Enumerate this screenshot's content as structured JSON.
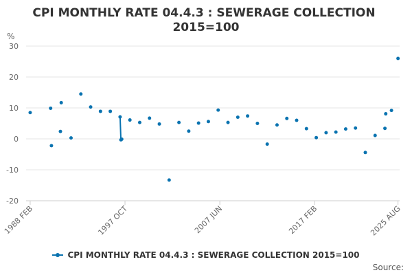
{
  "chart_data": {
    "type": "scatter",
    "title": "CPI MONTHLY RATE 04.4.3 : SEWERAGE COLLECTION",
    "subtitle": "2015=100",
    "ylabel": "%",
    "ylim": [
      -20,
      30
    ],
    "y_ticks": [
      -20,
      -10,
      0,
      10,
      20,
      30
    ],
    "x_tick_labels": [
      "1988 FEB",
      "1997 OCT",
      "2007 JUN",
      "2017 FEB",
      "2025 AUG"
    ],
    "grid": true,
    "legend_position": "bottom",
    "series": [
      {
        "name": "CPI MONTHLY RATE 04.4.3 : SEWERAGE COLLECTION 2015=100",
        "color": "#0a73b0",
        "points": [
          {
            "x": "1988 FEB",
            "y": 8.5
          },
          {
            "x": "1990 MAR",
            "y": 9.9
          },
          {
            "x": "1990 APR",
            "y": -2.2
          },
          {
            "x": "1991 MAR",
            "y": 2.4
          },
          {
            "x": "1991 APR",
            "y": 11.7
          },
          {
            "x": "1992 APR",
            "y": 0.3
          },
          {
            "x": "1993 APR",
            "y": 14.5
          },
          {
            "x": "1994 APR",
            "y": 10.3
          },
          {
            "x": "1995 APR",
            "y": 8.9
          },
          {
            "x": "1996 APR",
            "y": 8.9
          },
          {
            "x": "1997 APR",
            "y": 7.1
          },
          {
            "x": "1997 MAY",
            "y": -0.3
          },
          {
            "x": "1997 JUN",
            "y": -0.1
          },
          {
            "x": "1998 APR",
            "y": 6.1
          },
          {
            "x": "1999 APR",
            "y": 5.3
          },
          {
            "x": "2000 APR",
            "y": 6.7
          },
          {
            "x": "2001 APR",
            "y": 4.8
          },
          {
            "x": "2002 APR",
            "y": -13.3
          },
          {
            "x": "2003 APR",
            "y": 5.3
          },
          {
            "x": "2004 APR",
            "y": 2.5
          },
          {
            "x": "2005 APR",
            "y": 5.1
          },
          {
            "x": "2006 APR",
            "y": 5.6
          },
          {
            "x": "2007 APR",
            "y": 9.3
          },
          {
            "x": "2008 APR",
            "y": 5.3
          },
          {
            "x": "2009 APR",
            "y": 7.0
          },
          {
            "x": "2010 APR",
            "y": 7.4
          },
          {
            "x": "2011 APR",
            "y": 5.0
          },
          {
            "x": "2012 APR",
            "y": -1.7
          },
          {
            "x": "2013 APR",
            "y": 4.5
          },
          {
            "x": "2014 APR",
            "y": 6.6
          },
          {
            "x": "2015 APR",
            "y": 6.0
          },
          {
            "x": "2016 APR",
            "y": 3.3
          },
          {
            "x": "2017 APR",
            "y": 0.4
          },
          {
            "x": "2018 APR",
            "y": 2.0
          },
          {
            "x": "2019 APR",
            "y": 2.2
          },
          {
            "x": "2020 APR",
            "y": 3.2
          },
          {
            "x": "2021 APR",
            "y": 3.5
          },
          {
            "x": "2022 APR",
            "y": -4.4
          },
          {
            "x": "2023 APR",
            "y": 1.1
          },
          {
            "x": "2024 APR",
            "y": 3.4
          },
          {
            "x": "2024 MAY",
            "y": 8.1
          },
          {
            "x": "2024 DEC",
            "y": 9.2
          },
          {
            "x": "2025 AUG",
            "y": 26.0
          }
        ],
        "connected": [
          [
            10,
            11
          ]
        ]
      }
    ]
  },
  "legend": {
    "label": "CPI MONTHLY RATE 04.4.3 : SEWERAGE COLLECTION 2015=100"
  },
  "footer": {
    "source_label": "Source:"
  }
}
